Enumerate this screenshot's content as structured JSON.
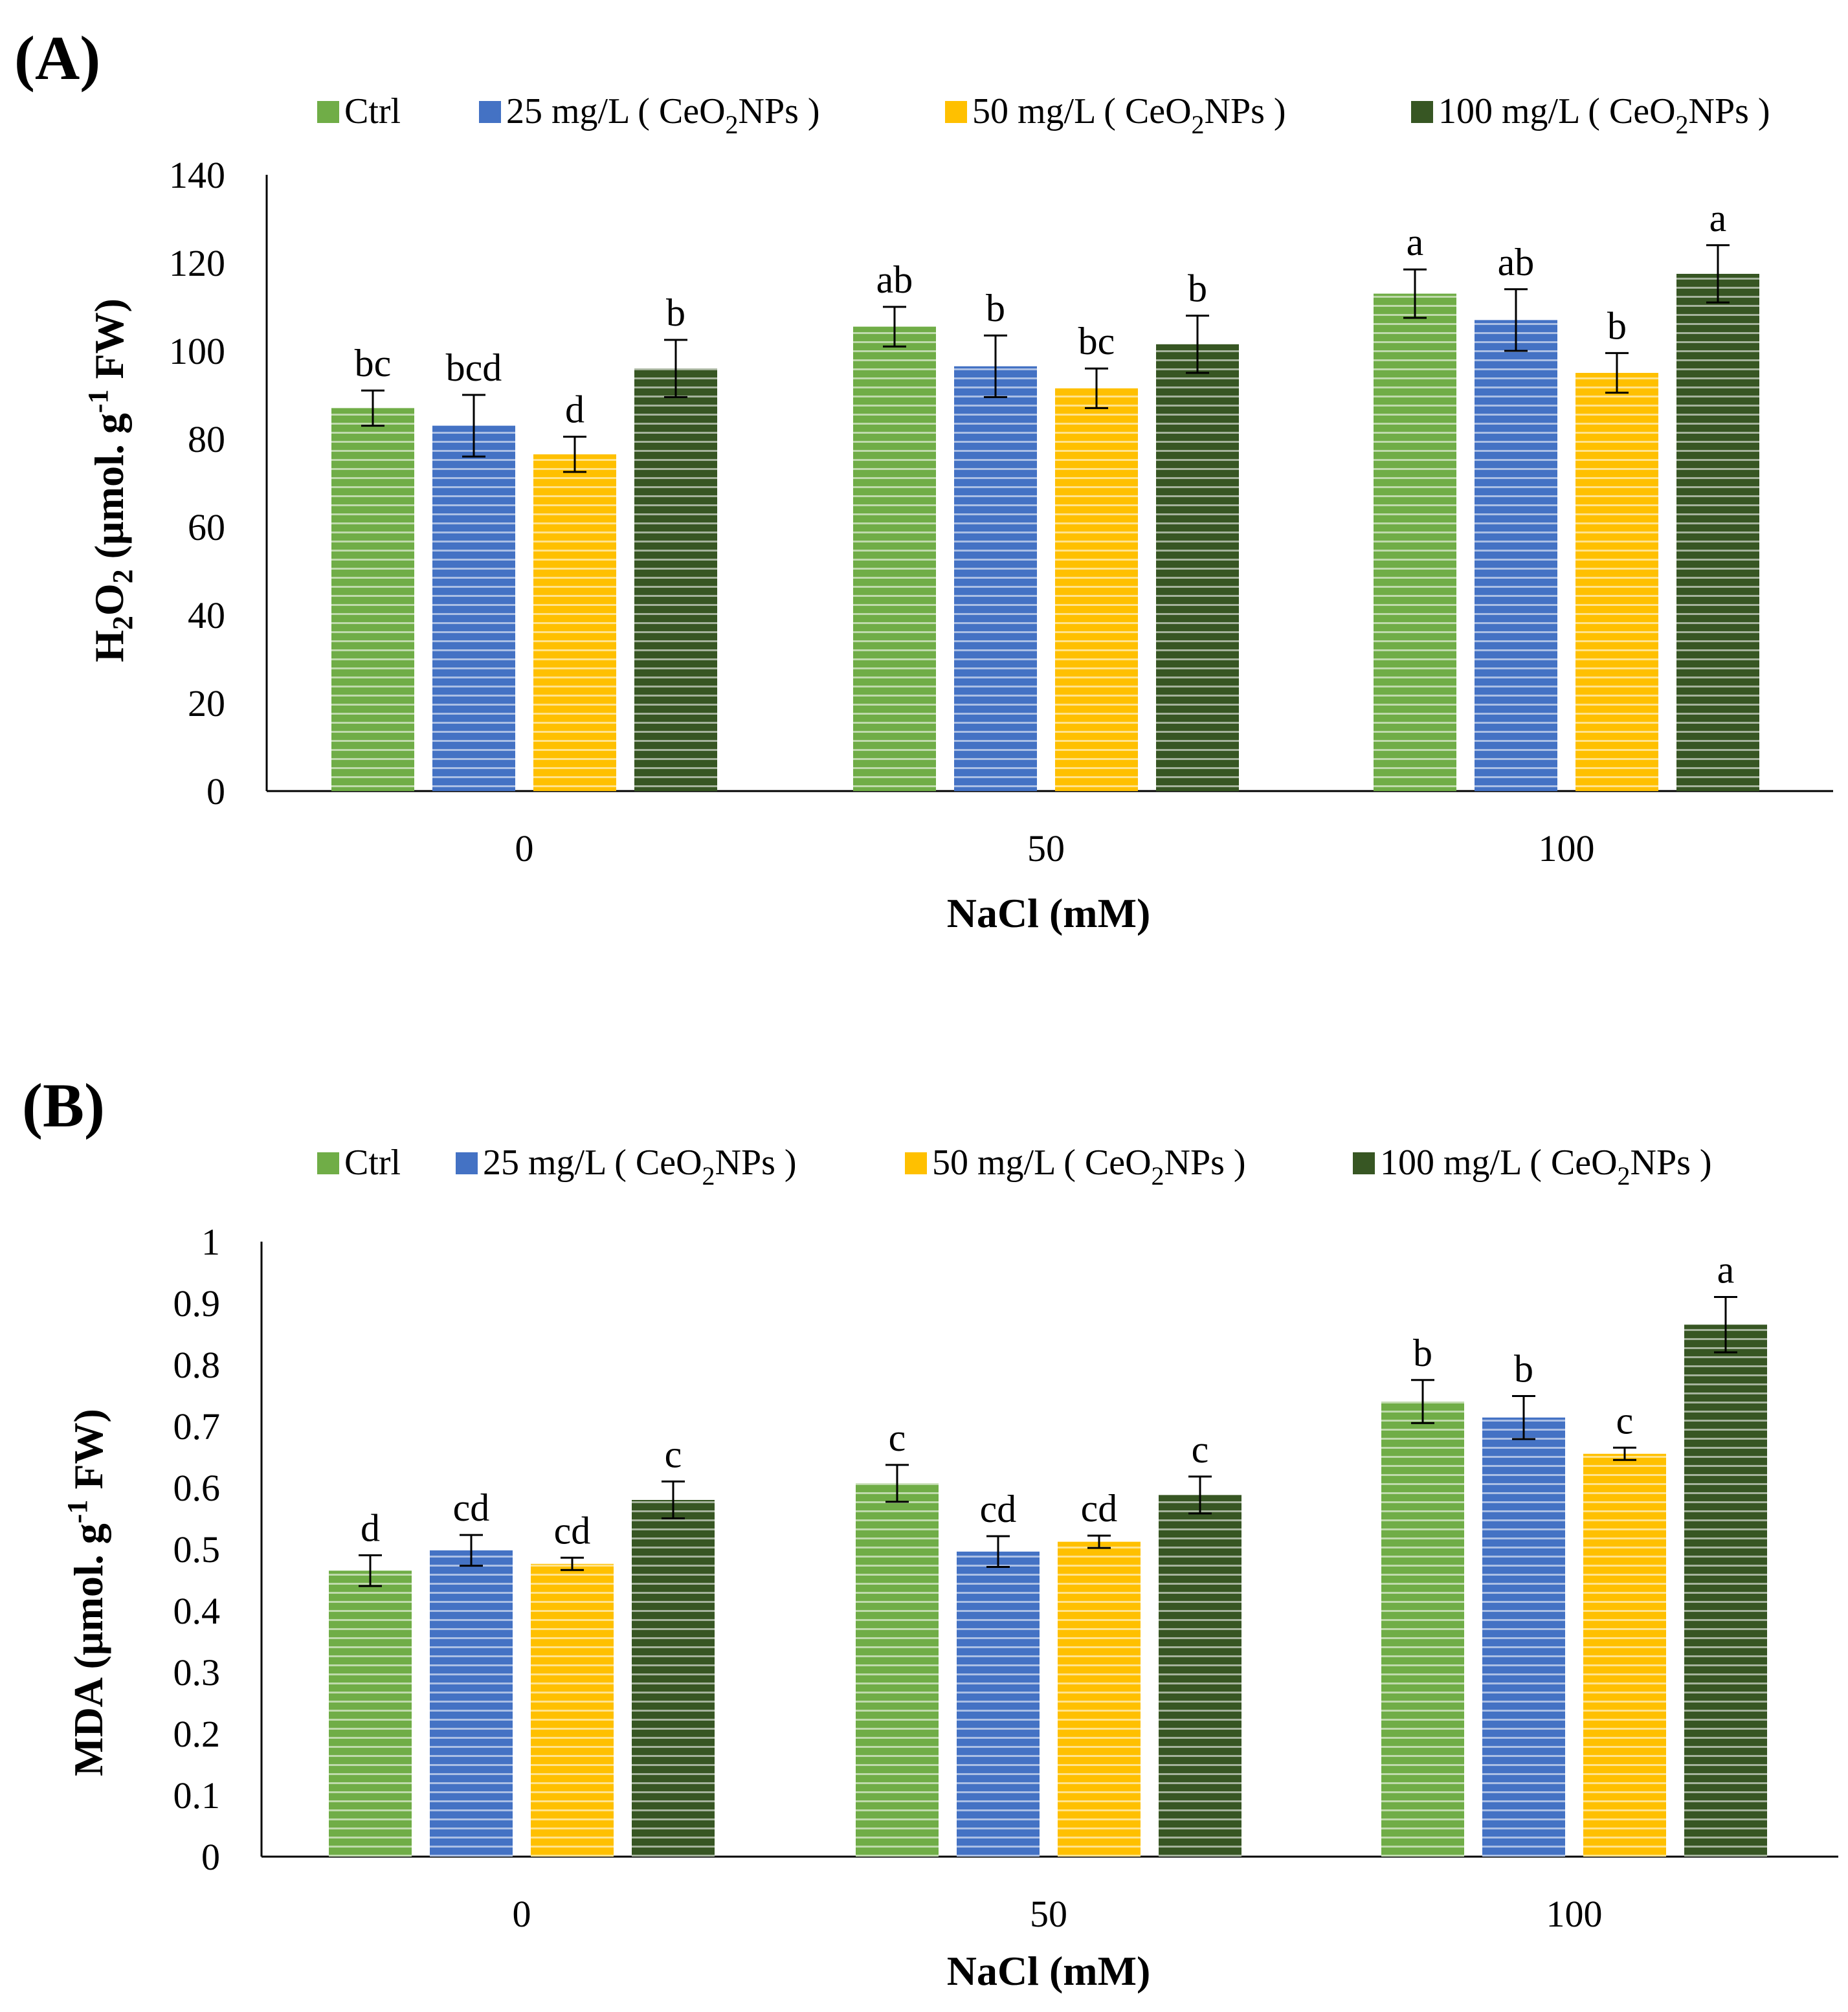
{
  "legend": [
    {
      "label": "Ctrl",
      "sub_prefix": "",
      "sub": "",
      "sub_suffix": ""
    },
    {
      "label": "",
      "sub_prefix": "25  mg/L ( CeO",
      "sub": "2",
      "sub_suffix": "NPs )"
    },
    {
      "label": "",
      "sub_prefix": "50  mg/L ( CeO",
      "sub": "2",
      "sub_suffix": "NPs )"
    },
    {
      "label": "",
      "sub_prefix": "100 mg/L ( CeO",
      "sub": "2",
      "sub_suffix": "NPs )"
    }
  ],
  "colors": {
    "series": [
      "#70ad47",
      "#4472c4",
      "#ffc000",
      "#375623"
    ],
    "stripe_light": "#ffffff",
    "axis": "#000000"
  },
  "chart_data": [
    {
      "type": "bar",
      "panel_label": "(A)",
      "title": "",
      "xlabel": "NaCl (mM)",
      "ylabel_parts": [
        "H",
        "2",
        "O",
        "2",
        " (µmol. g",
        "-1",
        " FW)"
      ],
      "categories": [
        "0",
        "50",
        "100"
      ],
      "ylim": [
        0,
        140
      ],
      "yticks": [
        "0",
        "20",
        "40",
        "60",
        "80",
        "100",
        "120",
        "140"
      ],
      "series": [
        {
          "name": "Ctrl",
          "values": [
            87,
            105.5,
            113
          ],
          "errors": [
            4,
            4.5,
            5.5
          ],
          "letters": [
            "bc",
            "ab",
            "a"
          ]
        },
        {
          "name": "25 mg/L (CeO2NPs)",
          "values": [
            83,
            96.5,
            107
          ],
          "errors": [
            7,
            7,
            7
          ],
          "letters": [
            "bcd",
            "b",
            "ab"
          ]
        },
        {
          "name": "50 mg/L (CeO2NPs)",
          "values": [
            76.5,
            91.5,
            95
          ],
          "errors": [
            4,
            4.5,
            4.5
          ],
          "letters": [
            "d",
            "bc",
            "b"
          ]
        },
        {
          "name": "100 mg/L (CeO2NPs)",
          "values": [
            96,
            101.5,
            117.5
          ],
          "errors": [
            6.5,
            6.5,
            6.5
          ],
          "letters": [
            "b",
            "b",
            "a"
          ]
        }
      ]
    },
    {
      "type": "bar",
      "panel_label": "(B)",
      "title": "",
      "xlabel": "NaCl (mM)",
      "ylabel_parts": [
        "MDA (µmol. g",
        "-1",
        " FW)"
      ],
      "categories": [
        "0",
        "50",
        "100"
      ],
      "ylim": [
        0,
        1
      ],
      "yticks": [
        "0",
        "0.1",
        "0.2",
        "0.3",
        "0.4",
        "0.5",
        "0.6",
        "0.7",
        "0.8",
        "0.9",
        "1"
      ],
      "series": [
        {
          "name": "Ctrl",
          "values": [
            0.465,
            0.607,
            0.74
          ],
          "errors": [
            0.025,
            0.03,
            0.035
          ],
          "letters": [
            "d",
            "c",
            "b"
          ]
        },
        {
          "name": "25 mg/L (CeO2NPs)",
          "values": [
            0.498,
            0.496,
            0.714
          ],
          "errors": [
            0.025,
            0.025,
            0.035
          ],
          "letters": [
            "cd",
            "cd",
            "b"
          ]
        },
        {
          "name": "50 mg/L (CeO2NPs)",
          "values": [
            0.476,
            0.512,
            0.655
          ],
          "errors": [
            0.01,
            0.01,
            0.01
          ],
          "letters": [
            "cd",
            "cd",
            "c"
          ]
        },
        {
          "name": "100 mg/L (CeO2NPs)",
          "values": [
            0.58,
            0.588,
            0.865
          ],
          "errors": [
            0.03,
            0.03,
            0.045
          ],
          "letters": [
            "c",
            "c",
            "a"
          ]
        }
      ]
    }
  ]
}
